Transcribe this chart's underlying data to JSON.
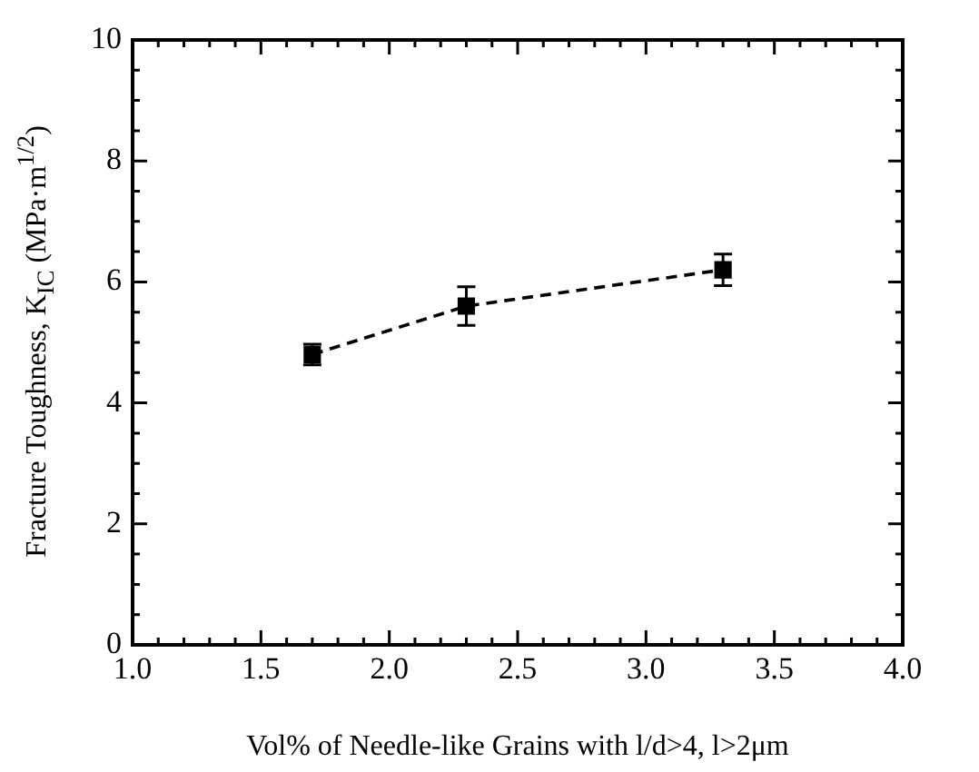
{
  "chart_data": {
    "type": "line",
    "xlabel": "Vol% of Needle-like Grains with l/d>4, l>2μm",
    "ylabel": "Fracture Toughness, K$_{IC}$ (MPa·m$^{1/2}$)",
    "x": [
      1.7,
      2.3,
      3.3
    ],
    "series": [
      {
        "color": "#000000",
        "values": [
          4.8,
          5.6,
          6.2
        ],
        "errors": [
          0.17,
          0.32,
          0.26
        ]
      }
    ],
    "marker": "square",
    "line_style": "dashed",
    "grid": false,
    "legend": false,
    "xlim": [
      1,
      4
    ],
    "ylim": [
      0,
      10
    ],
    "xticks": [
      {
        "value": 1,
        "label": "1.0"
      },
      {
        "value": 1.1,
        "label": null
      },
      {
        "value": 1.2,
        "label": null
      },
      {
        "value": 1.3,
        "label": null
      },
      {
        "value": 1.4,
        "label": null
      },
      1.5,
      {
        "value": 1.6,
        "label": null
      },
      {
        "value": 1.7,
        "label": null
      },
      {
        "value": 1.8,
        "label": null
      },
      {
        "value": 1.9,
        "label": null
      },
      {
        "value": 2,
        "label": "2.0"
      },
      {
        "value": 2.1,
        "label": null
      },
      {
        "value": 2.2,
        "label": null
      },
      {
        "value": 2.3,
        "label": null
      },
      {
        "value": 2.4,
        "label": null
      },
      2.5,
      {
        "value": 2.6,
        "label": null
      },
      {
        "value": 2.7,
        "label": null
      },
      {
        "value": 2.8,
        "label": null
      },
      {
        "value": 2.9,
        "label": null
      },
      {
        "value": 3,
        "label": "3.0"
      },
      {
        "value": 3.1,
        "label": null
      },
      {
        "value": 3.2,
        "label": null
      },
      {
        "value": 3.3,
        "label": null
      },
      {
        "value": 3.4,
        "label": null
      },
      3.5,
      {
        "value": 3.6,
        "label": null
      },
      {
        "value": 3.7,
        "label": null
      },
      {
        "value": 3.8,
        "label": null
      },
      {
        "value": 3.9,
        "label": null
      },
      {
        "value": 4,
        "label": "4.0"
      }
    ],
    "yticks": [
      0,
      {
        "value": 0.5,
        "label": null
      },
      {
        "value": 1,
        "label": null
      },
      {
        "value": 1.5,
        "label": null
      },
      2,
      {
        "value": 2.5,
        "label": null
      },
      {
        "value": 3,
        "label": null
      },
      {
        "value": 3.5,
        "label": null
      },
      4,
      {
        "value": 4.5,
        "label": null
      },
      {
        "value": 5,
        "label": null
      },
      {
        "value": 5.5,
        "label": null
      },
      6,
      {
        "value": 6.5,
        "label": null
      },
      {
        "value": 7,
        "label": null
      },
      {
        "value": 7.5,
        "label": null
      },
      8,
      {
        "value": 8.5,
        "label": null
      },
      {
        "value": 9,
        "label": null
      },
      {
        "value": 9.5,
        "label": null
      },
      10
    ]
  }
}
